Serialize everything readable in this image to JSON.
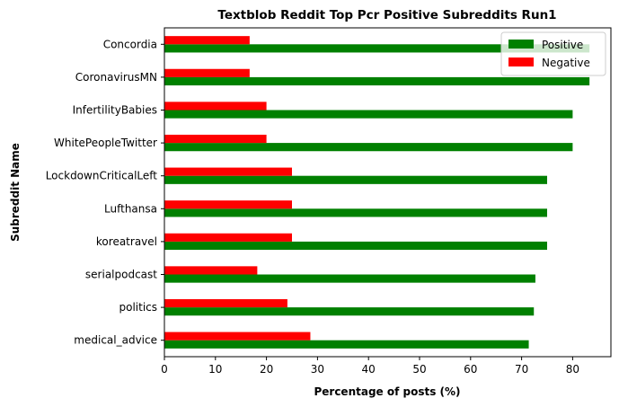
{
  "chart_data": {
    "type": "bar",
    "orientation": "horizontal",
    "title": "Textblob Reddit Top Pcr Positive Subreddits Run1",
    "xlabel": "Percentage of posts (%)",
    "ylabel": "Subreddit Name",
    "xlim": [
      0,
      87.5
    ],
    "xticks": [
      0,
      10,
      20,
      30,
      40,
      50,
      60,
      70,
      80
    ],
    "grid": false,
    "legend_position": "top-right",
    "categories": [
      "Concordia",
      "CoronavirusMN",
      "InfertilityBabies",
      "WhitePeopleTwitter",
      "LockdownCriticalLeft",
      "Lufthansa",
      "koreatravel",
      "serialpodcast",
      "politics",
      "medical_advice"
    ],
    "series": [
      {
        "name": "Positive",
        "color": "#008000",
        "values": [
          83.3,
          83.3,
          80.0,
          80.0,
          75.0,
          75.0,
          75.0,
          72.7,
          72.4,
          71.4
        ]
      },
      {
        "name": "Negative",
        "color": "#ff0000",
        "values": [
          16.7,
          16.7,
          20.0,
          20.0,
          25.0,
          25.0,
          25.0,
          18.2,
          24.1,
          28.6
        ]
      }
    ]
  }
}
